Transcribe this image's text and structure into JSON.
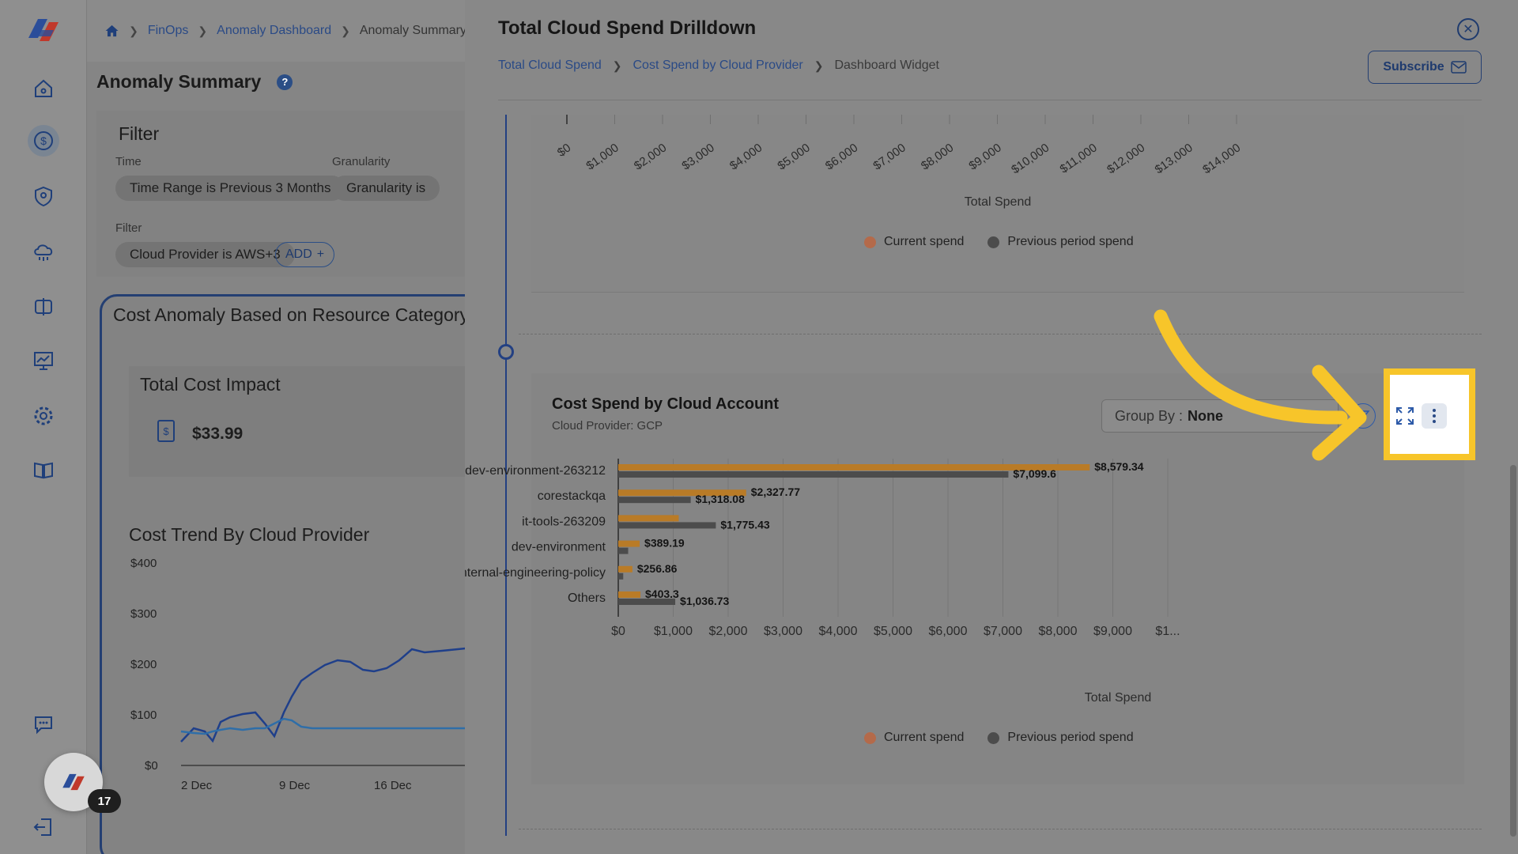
{
  "colors": {
    "current": "#b97b27",
    "previous": "#4c4c4c",
    "accent": "#234082",
    "highlight": "#f7c52a",
    "trend_line_1": "#1f3f8a",
    "trend_line_2": "#2f6ea8"
  },
  "rail": {
    "items": [
      "home-icon",
      "dollar-icon",
      "shield-icon",
      "cloud-icon",
      "split-icon",
      "chart-board-icon",
      "gear-icon",
      "book-icon",
      "chat-icon",
      "logout-icon"
    ],
    "chat_badge": "17"
  },
  "background": {
    "breadcrumb": [
      "FinOps",
      "Anomaly Dashboard",
      "Anomaly Summary"
    ],
    "title": "Anomaly Summary",
    "filter": {
      "title": "Filter",
      "time_label": "Time",
      "time_chip": "Time Range is Previous 3 Months",
      "granularity_label": "Granularity",
      "granularity_chip": "Granularity is",
      "filter_label": "Filter",
      "provider_chip": "Cloud Provider is AWS+3",
      "add_label": "ADD"
    },
    "anomaly_card_title": "Cost Anomaly Based on Resource Category",
    "impact_title": "Total Cost Impact",
    "impact_value": "$33.99",
    "trend_title": "Cost Trend By Cloud Provider",
    "trend_y_ticks": [
      "$400",
      "$300",
      "$200",
      "$100",
      "$0"
    ],
    "trend_x_ticks": [
      "2 Dec",
      "9 Dec",
      "16 Dec"
    ]
  },
  "drawer": {
    "title": "Total Cloud Spend Drilldown",
    "breadcrumb": [
      "Total Cloud Spend",
      "Cost Spend by Cloud Provider",
      "Dashboard Widget"
    ],
    "subscribe_label": "Subscribe",
    "top_chart": {
      "x_ticks": [
        "$0",
        "$1,000",
        "$2,000",
        "$3,000",
        "$4,000",
        "$5,000",
        "$6,000",
        "$7,000",
        "$8,000",
        "$9,000",
        "$10,000",
        "$11,000",
        "$12,000",
        "$13,000",
        "$14,000"
      ],
      "xlabel": "Total Spend",
      "legend": [
        "Current spend",
        "Previous period spend"
      ]
    },
    "account_card": {
      "title": "Cost Spend by Cloud Account",
      "subtitle": "Cloud Provider: GCP",
      "group_by_label": "Group By :",
      "group_by_value": "None"
    }
  },
  "chart_data": {
    "type": "bar",
    "orientation": "horizontal",
    "categories": [
      "dev-environment-263212",
      "corestackqa",
      "it-tools-263209",
      "dev-environment",
      "cs-internal-engineering-policy",
      "Others"
    ],
    "series": [
      {
        "name": "Current spend",
        "values": [
          8579.34,
          2327.77,
          1100,
          389.19,
          256.86,
          403.3
        ],
        "labels": [
          "$8,579.34",
          "$2,327.77",
          "",
          "$389.19",
          "$256.86",
          "$403.3"
        ]
      },
      {
        "name": "Previous period spend",
        "values": [
          7099.6,
          1318.08,
          1775.43,
          180,
          90,
          1036.73
        ],
        "labels": [
          "$7,099.6",
          "$1,318.08",
          "$1,775.43",
          "",
          "",
          "$1,036.73"
        ]
      }
    ],
    "x_ticks": [
      "$0",
      "$1,000",
      "$2,000",
      "$3,000",
      "$4,000",
      "$5,000",
      "$6,000",
      "$7,000",
      "$8,000",
      "$9,000",
      "$1..."
    ],
    "xlim": [
      0,
      10000
    ],
    "xlabel": "Total Spend",
    "ylabel": "",
    "legend": [
      "Current spend",
      "Previous period spend"
    ],
    "legend_position": "bottom",
    "grid": true
  }
}
